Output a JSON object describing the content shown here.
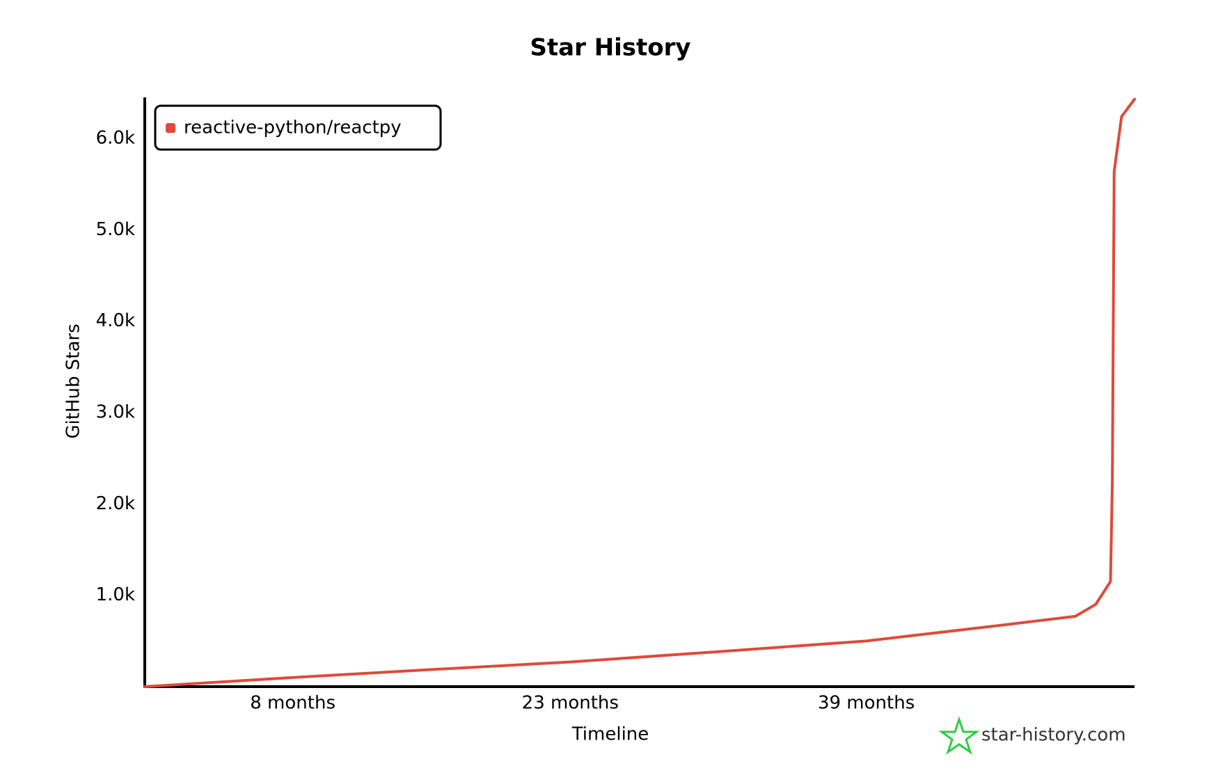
{
  "chart_data": {
    "type": "line",
    "title": "Star History",
    "x_label": "Timeline",
    "y_label": "GitHub Stars",
    "x": [
      0,
      8,
      15.75,
      23,
      30.8,
      39,
      46.2,
      50.3,
      51.4,
      52.2,
      52.3,
      52.4,
      52.8,
      53.5
    ],
    "series": [
      {
        "name": "reactive-python/reactpy",
        "color": "#dd4b39",
        "values": [
          0,
          100,
          190,
          270,
          380,
          500,
          670,
          770,
          900,
          1150,
          2220,
          5640,
          6240,
          6430
        ]
      }
    ],
    "xlim": [
      0,
      53.5
    ],
    "ylim": [
      0,
      6450
    ],
    "xticks": [
      {
        "value": 8,
        "label": "8 months"
      },
      {
        "value": 23,
        "label": "23 months"
      },
      {
        "value": 39,
        "label": "39 months"
      }
    ],
    "yticks": [
      {
        "value": 1000,
        "label": "1.0k"
      },
      {
        "value": 2000,
        "label": "2.0k"
      },
      {
        "value": 3000,
        "label": "3.0k"
      },
      {
        "value": 4000,
        "label": "4.0k"
      },
      {
        "value": 5000,
        "label": "5.0k"
      },
      {
        "value": 6000,
        "label": "6.0k"
      }
    ],
    "grid": false,
    "legend": "top-left",
    "watermark": "star-history.com"
  }
}
